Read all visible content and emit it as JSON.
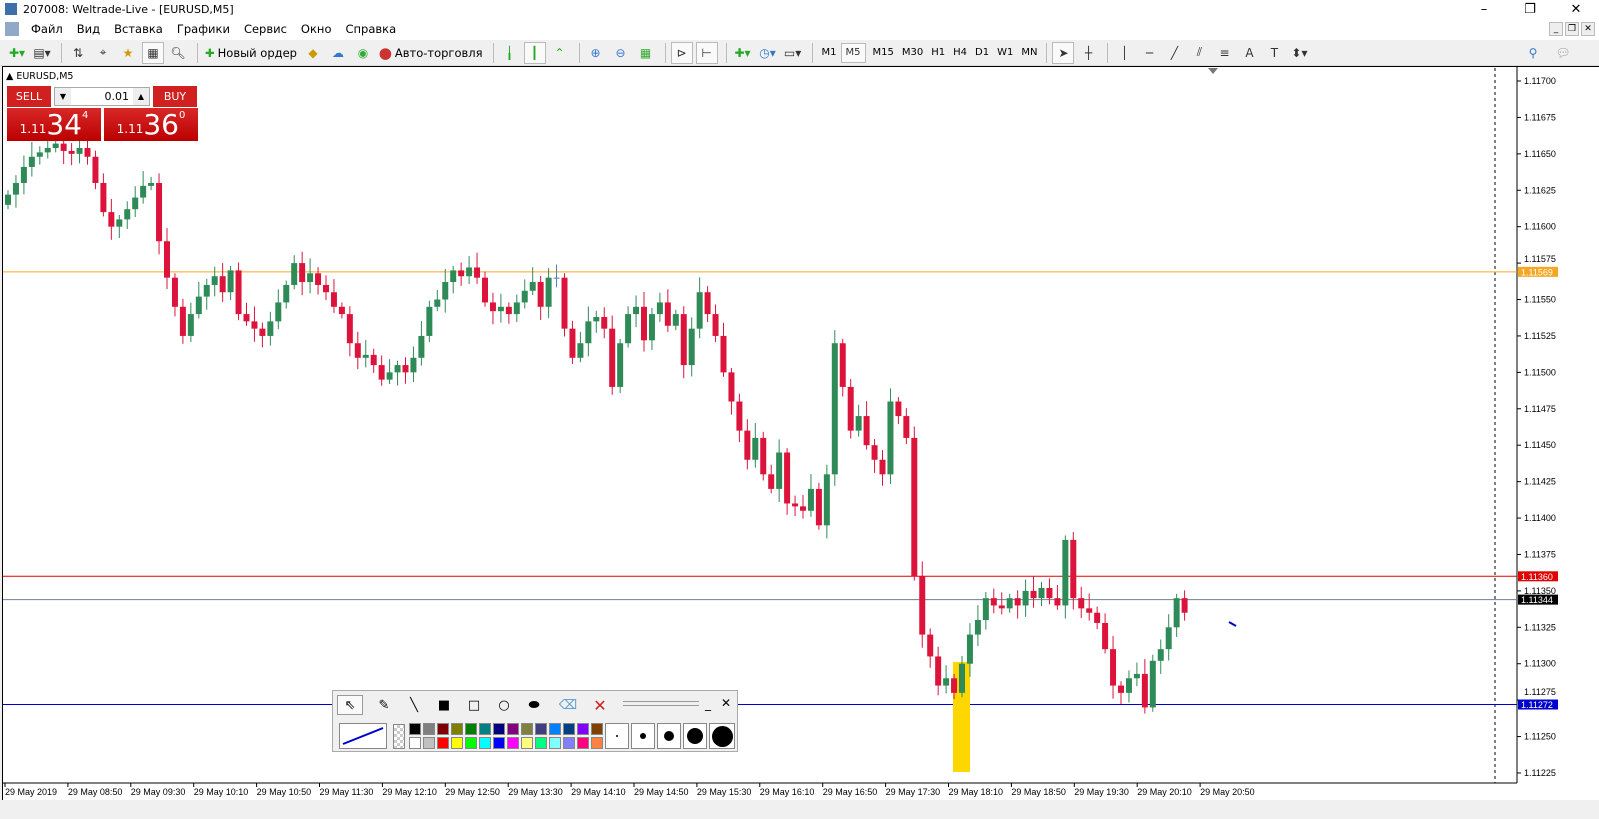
{
  "window": {
    "title": "207008: Weltrade-Live - [EURUSD,M5]",
    "controls": [
      "–",
      "❐",
      "✕"
    ]
  },
  "menu": [
    "Файл",
    "Вид",
    "Вставка",
    "Графики",
    "Сервис",
    "Окно",
    "Справка"
  ],
  "toolbar": {
    "new_order": "Новый ордер",
    "auto_trading": "Авто-торговля",
    "timeframes": [
      "M1",
      "M5",
      "M15",
      "M30",
      "H1",
      "H4",
      "D1",
      "W1",
      "MN"
    ],
    "selected_timeframe": "M5"
  },
  "chart": {
    "symbol_label": "EURUSD,M5"
  },
  "trade_panel": {
    "sell": "SELL",
    "buy": "BUY",
    "lot": "0.01",
    "bid_small": "1.11",
    "bid_big": "34",
    "bid_pip": "4",
    "ask_small": "1.11",
    "ask_big": "36",
    "ask_pip": "0"
  },
  "colors": {
    "bull": "#2e8b57",
    "bear": "#dc143c",
    "hline_orange": "#f5a623",
    "hline_red": "#e00000",
    "hline_gray": "#708090",
    "hline_blue": "#0000aa",
    "highlight": "#ffd700"
  },
  "chart_data": {
    "type": "candlestick",
    "price_ticks": [
      "1.11700",
      "1.11675",
      "1.11650",
      "1.11625",
      "1.11600",
      "1.11575",
      "1.11550",
      "1.11525",
      "1.11500",
      "1.11475",
      "1.11450",
      "1.11425",
      "1.11400",
      "1.11375",
      "1.11350",
      "1.11325",
      "1.11300",
      "1.11275",
      "1.11250",
      "1.11225"
    ],
    "time_ticks": [
      "29 May 2019",
      "29 May 08:50",
      "29 May 09:30",
      "29 May 10:10",
      "29 May 10:50",
      "29 May 11:30",
      "29 May 12:10",
      "29 May 12:50",
      "29 May 13:30",
      "29 May 14:10",
      "29 May 14:50",
      "29 May 15:30",
      "29 May 16:10",
      "29 May 16:50",
      "29 May 17:30",
      "29 May 18:10",
      "29 May 18:50",
      "29 May 19:30",
      "29 May 20:10",
      "29 May 20:50"
    ],
    "ylim": [
      1.11222,
      1.11715
    ],
    "first_open": 1.11615,
    "closes": [
      1.11622,
      1.1163,
      1.11641,
      1.11648,
      1.11651,
      1.11654,
      1.11657,
      1.11652,
      1.1165,
      1.11654,
      1.11648,
      1.1163,
      1.1161,
      1.116,
      1.11605,
      1.11612,
      1.1162,
      1.11628,
      1.1163,
      1.1159,
      1.11565,
      1.11545,
      1.11525,
      1.1154,
      1.11552,
      1.1156,
      1.11566,
      1.11555,
      1.1157,
      1.1154,
      1.11535,
      1.1153,
      1.11525,
      1.11535,
      1.11548,
      1.1156,
      1.11575,
      1.11562,
      1.11568,
      1.1156,
      1.11555,
      1.11545,
      1.1154,
      1.1152,
      1.1151,
      1.11512,
      1.11505,
      1.11495,
      1.115,
      1.11505,
      1.115,
      1.1151,
      1.11525,
      1.11545,
      1.1155,
      1.11562,
      1.1157,
      1.11566,
      1.11572,
      1.11565,
      1.11548,
      1.11542,
      1.11545,
      1.1154,
      1.11548,
      1.11556,
      1.11562,
      1.11545,
      1.11565,
      1.11565,
      1.1153,
      1.1151,
      1.1152,
      1.11535,
      1.11538,
      1.1153,
      1.1149,
      1.1152,
      1.1154,
      1.11545,
      1.11522,
      1.1154,
      1.11548,
      1.11532,
      1.1154,
      1.11505,
      1.1153,
      1.11555,
      1.1154,
      1.11525,
      1.115,
      1.1148,
      1.1146,
      1.1144,
      1.11455,
      1.1143,
      1.1142,
      1.11445,
      1.1141,
      1.11408,
      1.11405,
      1.1142,
      1.11395,
      1.1143,
      1.1152,
      1.1149,
      1.1146,
      1.1147,
      1.1145,
      1.1144,
      1.1143,
      1.1148,
      1.1147,
      1.11455,
      1.1136,
      1.1132,
      1.11305,
      1.11285,
      1.1129,
      1.1128,
      1.113,
      1.1132,
      1.1133,
      1.11345,
      1.1134,
      1.11338,
      1.11345,
      1.1134,
      1.1135,
      1.11345,
      1.11352,
      1.11345,
      1.1134,
      1.11385,
      1.11345,
      1.11338,
      1.11335,
      1.11328,
      1.1131,
      1.11285,
      1.1128,
      1.1129,
      1.11293,
      1.1127,
      1.11302,
      1.1131,
      1.11325,
      1.11345,
      1.11335
    ],
    "horizontal_lines": [
      {
        "price": 1.11569,
        "label": "1.11569",
        "color": "#f5a623"
      },
      {
        "price": 1.1136,
        "label": "1.11360",
        "color": "#e00000"
      },
      {
        "price": 1.11344,
        "label": "1.11344",
        "color": "#000000"
      },
      {
        "price": 1.11272,
        "label": "1.11272",
        "color": "#0000cc"
      }
    ]
  },
  "draw_toolbar": {
    "colors_top": [
      "#000000",
      "#808080",
      "#800000",
      "#808000",
      "#008000",
      "#008080",
      "#000080",
      "#800080",
      "#808040",
      "#404080",
      "#0080ff",
      "#004080",
      "#8000ff",
      "#804000"
    ],
    "colors_bottom": [
      "#ffffff",
      "#c0c0c0",
      "#ff0000",
      "#ffff00",
      "#00ff00",
      "#00ffff",
      "#0000ff",
      "#ff00ff",
      "#ffff80",
      "#00ff80",
      "#80ffff",
      "#8080ff",
      "#ff0080",
      "#ff8040"
    ]
  }
}
